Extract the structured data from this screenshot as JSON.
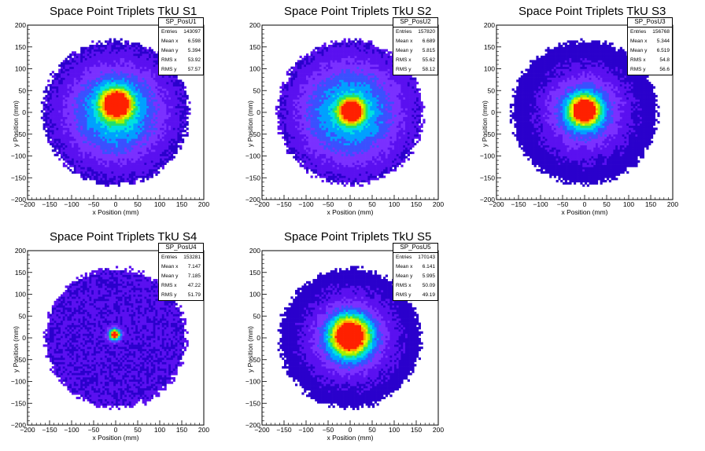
{
  "chart_data": [
    {
      "type": "heatmap",
      "title": "Space Point Triplets TkU S1",
      "xlabel": "x Position (mm)",
      "ylabel": "y Position (mm)",
      "xlim": [
        -200,
        200
      ],
      "ylim": [
        -200,
        200
      ],
      "x_ticks": [
        "−200",
        "−150",
        "−100",
        "−50",
        "0",
        "50",
        "100",
        "150",
        "200"
      ],
      "y_ticks": [
        "200",
        "150",
        "100",
        "50",
        "0",
        "−50",
        "−100",
        "−150",
        "−200"
      ],
      "stats": {
        "name": "SP_PosU1",
        "rows": [
          {
            "label": "Entries",
            "value": "143097"
          },
          {
            "label": "Mean x",
            "value": "6.598"
          },
          {
            "label": "Mean y",
            "value": "5.394"
          },
          {
            "label": "RMS x",
            "value": "53.92"
          },
          {
            "label": "RMS y",
            "value": "57.57"
          }
        ]
      },
      "distribution": {
        "radius": 165,
        "core_x": 2,
        "core_y": 20,
        "core_sigma": 22,
        "core_peak": 1.0,
        "halo_sigma": 80,
        "halo_level": 0.52
      }
    },
    {
      "type": "heatmap",
      "title": "Space Point Triplets TkU S2",
      "xlabel": "x Position (mm)",
      "ylabel": "y Position (mm)",
      "xlim": [
        -200,
        200
      ],
      "ylim": [
        -200,
        200
      ],
      "x_ticks": [
        "−200",
        "−150",
        "−100",
        "−50",
        "0",
        "50",
        "100",
        "150",
        "200"
      ],
      "y_ticks": [
        "200",
        "150",
        "100",
        "50",
        "0",
        "−50",
        "−100",
        "−150",
        "−200"
      ],
      "stats": {
        "name": "SP_PosU2",
        "rows": [
          {
            "label": "Entries",
            "value": "157820"
          },
          {
            "label": "Mean x",
            "value": "6.689"
          },
          {
            "label": "Mean y",
            "value": "5.815"
          },
          {
            "label": "RMS x",
            "value": "55.62"
          },
          {
            "label": "RMS y",
            "value": "58.12"
          }
        ]
      },
      "distribution": {
        "radius": 165,
        "core_x": 3,
        "core_y": 3,
        "core_sigma": 18,
        "core_peak": 1.0,
        "halo_sigma": 85,
        "halo_level": 0.5
      }
    },
    {
      "type": "heatmap",
      "title": "Space Point Triplets TkU S3",
      "xlabel": "x Position (mm)",
      "ylabel": "y Position (mm)",
      "xlim": [
        -200,
        200
      ],
      "ylim": [
        -200,
        200
      ],
      "x_ticks": [
        "−200",
        "−150",
        "−100",
        "−50",
        "0",
        "50",
        "100",
        "150",
        "200"
      ],
      "y_ticks": [
        "200",
        "150",
        "100",
        "50",
        "0",
        "−50",
        "−100",
        "−150",
        "−200"
      ],
      "stats": {
        "name": "SP_PosU3",
        "rows": [
          {
            "label": "Entries",
            "value": "156768"
          },
          {
            "label": "Mean x",
            "value": "5.344"
          },
          {
            "label": "Mean y",
            "value": "6.519"
          },
          {
            "label": "RMS x",
            "value": "54.8"
          },
          {
            "label": "RMS y",
            "value": "56.6"
          }
        ]
      },
      "distribution": {
        "radius": 165,
        "core_x": 0,
        "core_y": 5,
        "core_sigma": 22,
        "core_peak": 1.0,
        "halo_sigma": 65,
        "halo_level": 0.42
      }
    },
    {
      "type": "heatmap",
      "title": "Space Point Triplets TkU S4",
      "xlabel": "x Position (mm)",
      "ylabel": "y Position (mm)",
      "xlim": [
        -200,
        200
      ],
      "ylim": [
        -200,
        200
      ],
      "x_ticks": [
        "−200",
        "−150",
        "−100",
        "−50",
        "0",
        "50",
        "100",
        "150",
        "200"
      ],
      "y_ticks": [
        "200",
        "150",
        "100",
        "50",
        "0",
        "−50",
        "−100",
        "−150",
        "−200"
      ],
      "stats": {
        "name": "SP_PosU4",
        "rows": [
          {
            "label": "Entries",
            "value": "153281"
          },
          {
            "label": "Mean x",
            "value": "7.147"
          },
          {
            "label": "Mean y",
            "value": "7.185"
          },
          {
            "label": "RMS x",
            "value": "47.22"
          },
          {
            "label": "RMS y",
            "value": "51.79"
          }
        ]
      },
      "distribution": {
        "radius": 160,
        "core_x": -2,
        "core_y": 8,
        "core_sigma": 9,
        "core_peak": 1.0,
        "halo_sigma": 500,
        "halo_level": 0.1
      }
    },
    {
      "type": "heatmap",
      "title": "Space Point Triplets TkU S5",
      "xlabel": "x Position (mm)",
      "ylabel": "y Position (mm)",
      "xlim": [
        -200,
        200
      ],
      "ylim": [
        -200,
        200
      ],
      "x_ticks": [
        "−200",
        "−150",
        "−100",
        "−50",
        "0",
        "50",
        "100",
        "150",
        "200"
      ],
      "y_ticks": [
        "200",
        "150",
        "100",
        "50",
        "0",
        "−50",
        "−100",
        "−150",
        "−200"
      ],
      "stats": {
        "name": "SP_PosU5",
        "rows": [
          {
            "label": "Entries",
            "value": "170143"
          },
          {
            "label": "Mean x",
            "value": "6.141"
          },
          {
            "label": "Mean y",
            "value": "5.995"
          },
          {
            "label": "RMS x",
            "value": "50.09"
          },
          {
            "label": "RMS y",
            "value": "49.19"
          }
        ]
      },
      "distribution": {
        "radius": 160,
        "core_x": 0,
        "core_y": 5,
        "core_sigma": 28,
        "core_peak": 1.0,
        "halo_sigma": 65,
        "halo_level": 0.42
      }
    }
  ],
  "palette": [
    "#2a00cc",
    "#5a10f0",
    "#7a30ff",
    "#3a50ff",
    "#00a0ff",
    "#00e0e0",
    "#20e070",
    "#a0f000",
    "#f0f000",
    "#ffa000",
    "#ff2000"
  ]
}
